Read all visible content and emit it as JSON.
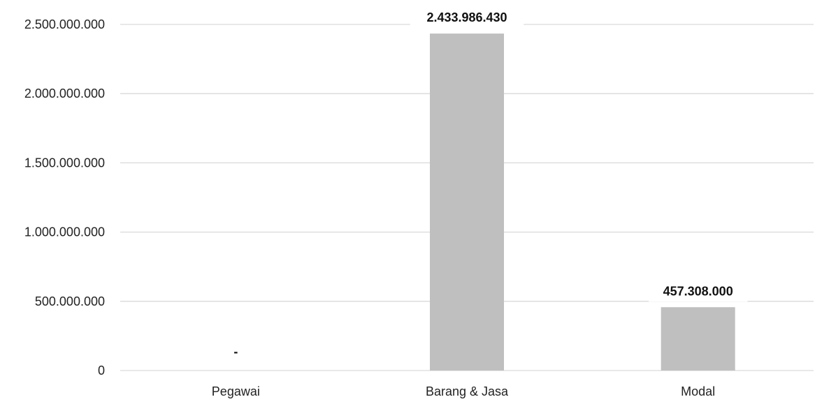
{
  "chart_data": {
    "type": "bar",
    "categories": [
      "Pegawai",
      "Barang & Jasa",
      "Modal"
    ],
    "values": [
      0,
      2433986430,
      457308000
    ],
    "data_labels": [
      "-",
      "2.433.986.430",
      "457.308.000"
    ],
    "yticks": [
      0,
      500000000,
      1000000000,
      1500000000,
      2000000000,
      2500000000
    ],
    "ytick_labels": [
      "0",
      "500.000.000",
      "1.000.000.000",
      "1.500.000.000",
      "2.000.000.000",
      "2.500.000.000"
    ],
    "ylim": [
      0,
      2500000000
    ],
    "title": "",
    "xlabel": "",
    "ylabel": "",
    "grid": true,
    "legend": "none",
    "colors": {
      "bar": "#bfbfbf",
      "grid": "#d9d9d9",
      "label_background": "#ffffff"
    }
  }
}
